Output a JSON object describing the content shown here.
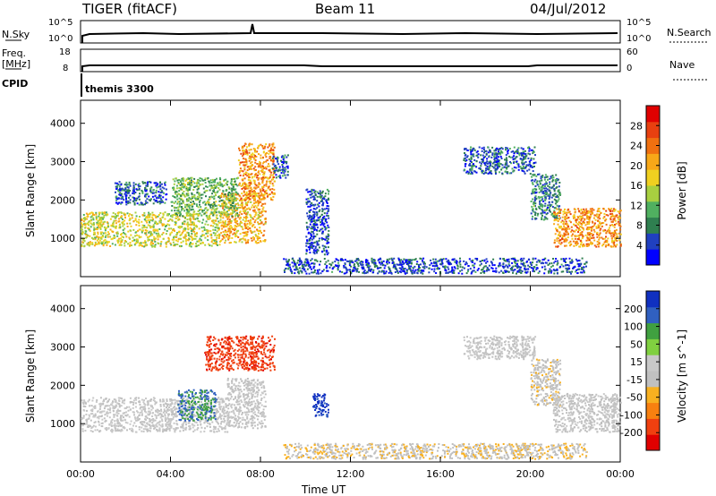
{
  "header": {
    "radar": "TIGER (fitACF)",
    "beam": "Beam 11",
    "date": "04/Jul/2012"
  },
  "status_panels": {
    "nsky": {
      "label": "N.Sky",
      "ticks": [
        "10^5",
        "10^0"
      ],
      "right_ticks": [
        "10^5",
        "10^0"
      ],
      "right_label": "N.Search"
    },
    "freq": {
      "label_line1": "Freq.",
      "label_line2": "[MHz]",
      "ticks": [
        "18",
        "8"
      ],
      "right_ticks": [
        "60",
        "0"
      ],
      "right_label": "Nave"
    },
    "cpid": {
      "label": "CPID",
      "value": "themis 3300"
    }
  },
  "chart_data": [
    {
      "type": "heatmap",
      "name": "Power",
      "ylabel": "Slant Range [km]",
      "xlabel": "Time UT",
      "ylim": [
        0,
        4600
      ],
      "xlim": [
        0,
        24
      ],
      "y_ticks": [
        1000,
        2000,
        3000,
        4000
      ],
      "x_ticks": [
        "00:00",
        "04:00",
        "08:00",
        "12:00",
        "16:00",
        "20:00",
        "00:00"
      ],
      "colorbar": {
        "label": "Power [dB]",
        "ticks": [
          "28",
          "24",
          "20",
          "16",
          "12",
          "8",
          "4"
        ],
        "colors": [
          "#0000ff",
          "#2040c0",
          "#2f7f50",
          "#50b060",
          "#a8d040",
          "#f0d020",
          "#f8a818",
          "#f07010",
          "#e84010",
          "#e00000"
        ]
      },
      "regions": [
        {
          "t0": 0.0,
          "t1": 6.2,
          "r0": 800,
          "r1": 1700,
          "value": 16
        },
        {
          "t0": 6.2,
          "t1": 8.2,
          "r0": 900,
          "r1": 2200,
          "value": 20
        },
        {
          "t0": 1.5,
          "t1": 3.8,
          "r0": 1900,
          "r1": 2500,
          "value": 6
        },
        {
          "t0": 4.0,
          "t1": 7.0,
          "r0": 1600,
          "r1": 2600,
          "value": 12
        },
        {
          "t0": 7.0,
          "t1": 8.6,
          "r0": 2000,
          "r1": 3500,
          "value": 22
        },
        {
          "t0": 8.5,
          "t1": 9.2,
          "r0": 2600,
          "r1": 3200,
          "value": 6
        },
        {
          "t0": 10.0,
          "t1": 11.0,
          "r0": 600,
          "r1": 2300,
          "value": 5
        },
        {
          "t0": 9.0,
          "t1": 22.5,
          "r0": 100,
          "r1": 500,
          "value": 5
        },
        {
          "t0": 17.0,
          "t1": 20.2,
          "r0": 2700,
          "r1": 3400,
          "value": 6
        },
        {
          "t0": 20.0,
          "t1": 21.3,
          "r0": 1500,
          "r1": 2700,
          "value": 8
        },
        {
          "t0": 21.0,
          "t1": 24.0,
          "r0": 800,
          "r1": 1800,
          "value": 22
        }
      ]
    },
    {
      "type": "heatmap",
      "name": "Velocity",
      "ylabel": "Slant Range [km]",
      "xlabel": "Time UT",
      "ylim": [
        0,
        4600
      ],
      "xlim": [
        0,
        24
      ],
      "y_ticks": [
        1000,
        2000,
        3000,
        4000
      ],
      "x_ticks": [
        "00:00",
        "04:00",
        "08:00",
        "12:00",
        "16:00",
        "20:00",
        "00:00"
      ],
      "colorbar": {
        "label": "Velocity [m s^-1]",
        "ticks": [
          "200",
          "100",
          "50",
          "15",
          "-15",
          "-50",
          "-100",
          "-200"
        ],
        "colors": [
          "#e00000",
          "#f04010",
          "#f88010",
          "#f8b020",
          "#c0c0c0",
          "#c8c8c8",
          "#80d040",
          "#40a040",
          "#3060c0",
          "#1030c0"
        ]
      },
      "regions": [
        {
          "t0": 0.0,
          "t1": 6.5,
          "r0": 800,
          "r1": 1700,
          "value": 0
        },
        {
          "t0": 6.5,
          "t1": 8.2,
          "r0": 900,
          "r1": 2200,
          "value": -5
        },
        {
          "t0": 5.5,
          "t1": 8.6,
          "r0": 2400,
          "r1": 3300,
          "value": -180
        },
        {
          "t0": 4.3,
          "t1": 6.0,
          "r0": 1100,
          "r1": 1900,
          "value": 150
        },
        {
          "t0": 10.3,
          "t1": 11.0,
          "r0": 1200,
          "r1": 1800,
          "value": 220
        },
        {
          "t0": 9.0,
          "t1": 22.5,
          "r0": 100,
          "r1": 500,
          "value": -40
        },
        {
          "t0": 17.0,
          "t1": 20.2,
          "r0": 2700,
          "r1": 3300,
          "value": 5
        },
        {
          "t0": 20.0,
          "t1": 21.3,
          "r0": 1500,
          "r1": 2700,
          "value": -30
        },
        {
          "t0": 21.0,
          "t1": 24.0,
          "r0": 800,
          "r1": 1800,
          "value": -10
        }
      ]
    }
  ]
}
